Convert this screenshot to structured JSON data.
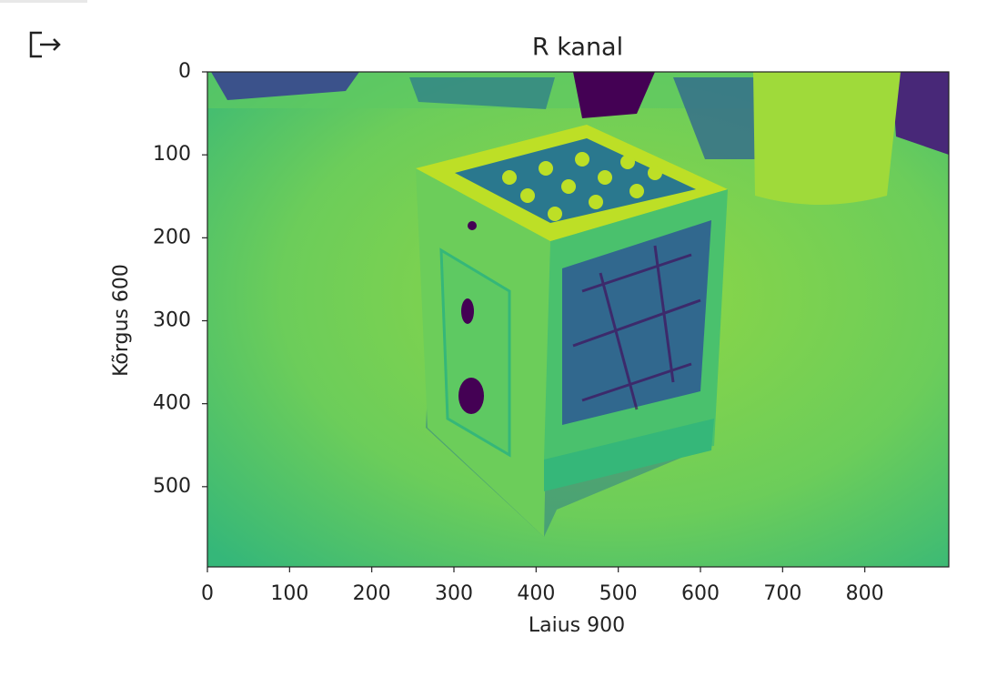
{
  "chart_data": {
    "type": "image",
    "title": "R kanal",
    "x_label": "Laius 900",
    "y_label": "Kõrgus 600",
    "xlim": [
      0,
      900
    ],
    "ylim": [
      600,
      0
    ],
    "xticks": [
      0,
      100,
      200,
      300,
      400,
      500,
      600,
      700,
      800
    ],
    "yticks": [
      0,
      100,
      200,
      300,
      400,
      500
    ],
    "colormap": "viridis"
  }
}
